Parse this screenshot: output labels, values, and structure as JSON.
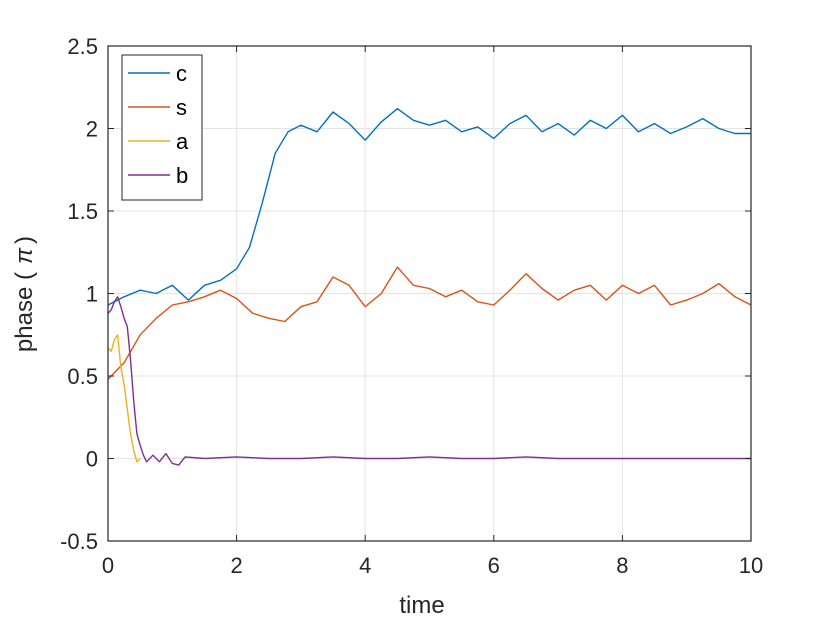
{
  "chart_data": {
    "type": "line",
    "xlabel": "time",
    "ylabel_prefix": "phase (",
    "ylabel_symbol": "π",
    "ylabel_suffix": ")",
    "xlim": [
      0,
      10
    ],
    "ylim": [
      -0.5,
      2.5
    ],
    "xticks": [
      0,
      2,
      4,
      6,
      8,
      10
    ],
    "xtick_labels": [
      "0",
      "2",
      "4",
      "6",
      "8",
      "10"
    ],
    "yticks": [
      -0.5,
      0,
      0.5,
      1,
      1.5,
      2,
      2.5
    ],
    "ytick_labels": [
      "-0.5",
      "0",
      "0.5",
      "1",
      "1.5",
      "2",
      "2.5"
    ],
    "grid": true,
    "legend_position": "top-left",
    "series": [
      {
        "name": "c",
        "color": "#0072BD",
        "x": [
          0,
          0.25,
          0.5,
          0.75,
          1.0,
          1.25,
          1.5,
          1.75,
          2.0,
          2.2,
          2.4,
          2.6,
          2.8,
          3.0,
          3.25,
          3.5,
          3.75,
          4.0,
          4.25,
          4.5,
          4.75,
          5.0,
          5.25,
          5.5,
          5.75,
          6.0,
          6.25,
          6.5,
          6.75,
          7.0,
          7.25,
          7.5,
          7.75,
          8.0,
          8.25,
          8.5,
          8.75,
          9.0,
          9.25,
          9.5,
          9.75,
          10.0
        ],
        "y": [
          0.93,
          0.98,
          1.02,
          1.0,
          1.05,
          0.96,
          1.05,
          1.08,
          1.15,
          1.28,
          1.55,
          1.85,
          1.98,
          2.02,
          1.98,
          2.1,
          2.03,
          1.93,
          2.04,
          2.12,
          2.05,
          2.02,
          2.05,
          1.98,
          2.01,
          1.94,
          2.03,
          2.08,
          1.98,
          2.03,
          1.96,
          2.05,
          2.0,
          2.08,
          1.98,
          2.03,
          1.97,
          2.01,
          2.06,
          2.0,
          1.97,
          1.97
        ]
      },
      {
        "name": "s",
        "color": "#D95319",
        "x": [
          0,
          0.25,
          0.5,
          0.75,
          1.0,
          1.25,
          1.5,
          1.75,
          2.0,
          2.25,
          2.5,
          2.75,
          3.0,
          3.25,
          3.5,
          3.75,
          4.0,
          4.25,
          4.5,
          4.75,
          5.0,
          5.25,
          5.5,
          5.75,
          6.0,
          6.25,
          6.5,
          6.75,
          7.0,
          7.25,
          7.5,
          7.75,
          8.0,
          8.25,
          8.5,
          8.75,
          9.0,
          9.25,
          9.5,
          9.75,
          10.0
        ],
        "y": [
          0.48,
          0.58,
          0.75,
          0.85,
          0.93,
          0.95,
          0.98,
          1.02,
          0.97,
          0.88,
          0.85,
          0.83,
          0.92,
          0.95,
          1.1,
          1.05,
          0.92,
          1.0,
          1.16,
          1.05,
          1.03,
          0.98,
          1.02,
          0.95,
          0.93,
          1.02,
          1.12,
          1.03,
          0.96,
          1.02,
          1.05,
          0.96,
          1.05,
          1.0,
          1.05,
          0.93,
          0.96,
          1.0,
          1.06,
          0.98,
          0.93
        ]
      },
      {
        "name": "a",
        "color": "#EDB120",
        "x": [
          0,
          0.05,
          0.1,
          0.15,
          0.2,
          0.25,
          0.3,
          0.35,
          0.4,
          0.45,
          0.5
        ],
        "y": [
          0.67,
          0.65,
          0.72,
          0.75,
          0.55,
          0.45,
          0.3,
          0.15,
          0.05,
          -0.02,
          0.0
        ]
      },
      {
        "name": "b",
        "color": "#7E2F8E",
        "x": [
          0,
          0.05,
          0.1,
          0.15,
          0.2,
          0.25,
          0.3,
          0.35,
          0.4,
          0.45,
          0.5,
          0.55,
          0.6,
          0.7,
          0.8,
          0.9,
          1.0,
          1.1,
          1.2,
          1.5,
          2.0,
          2.5,
          3.0,
          3.5,
          4.0,
          4.5,
          5.0,
          5.5,
          6.0,
          6.5,
          7.0,
          7.5,
          8.0,
          8.5,
          9.0,
          9.5,
          10.0
        ],
        "y": [
          0.88,
          0.9,
          0.95,
          0.98,
          0.92,
          0.85,
          0.8,
          0.6,
          0.35,
          0.15,
          0.08,
          0.02,
          -0.02,
          0.02,
          -0.02,
          0.03,
          -0.03,
          -0.04,
          0.01,
          0.0,
          0.01,
          0.0,
          0.0,
          0.01,
          0.0,
          0.0,
          0.01,
          0.0,
          0.0,
          0.01,
          0.0,
          0.0,
          0.0,
          0.0,
          0.0,
          0.0,
          0.0
        ]
      }
    ]
  }
}
